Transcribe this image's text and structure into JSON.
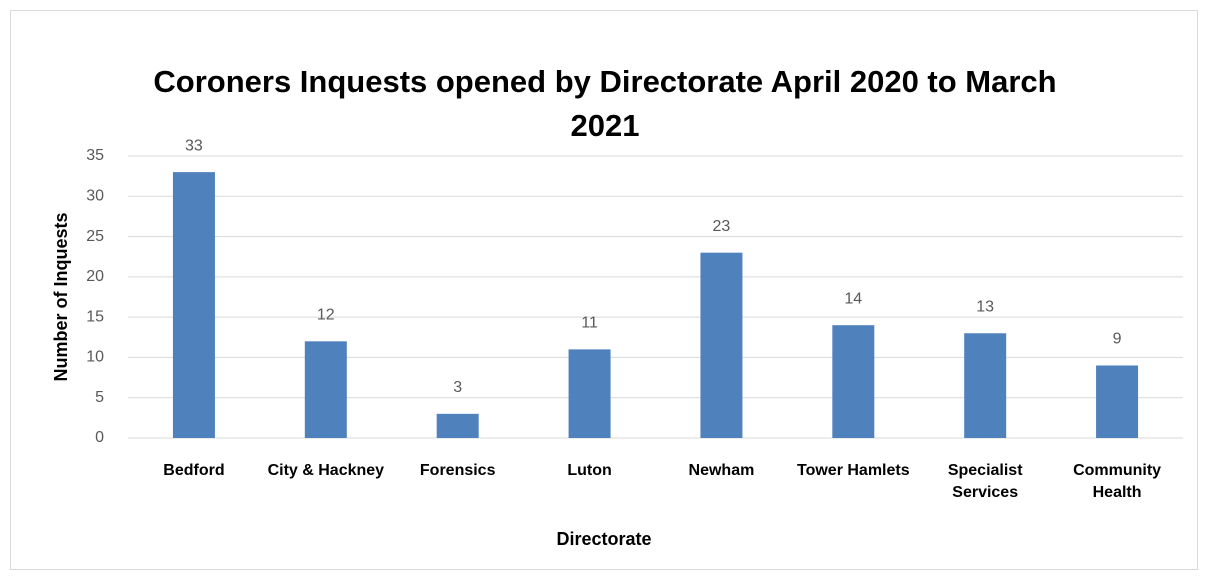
{
  "chart_data": {
    "type": "bar",
    "title": "Coroners Inquests opened by Directorate April 2020 to March 2021",
    "x_label": "Directorate",
    "y_label": "Number of Inquests",
    "categories": [
      "Bedford",
      "City & Hackney",
      "Forensics",
      "Luton",
      "Newham",
      "Tower Hamlets",
      "Specialist Services",
      "Community Health"
    ],
    "values": [
      33,
      12,
      3,
      11,
      23,
      14,
      13,
      9
    ],
    "color": "#4f81bd",
    "ylim": [
      0,
      35
    ],
    "yticks": [
      0,
      5,
      10,
      15,
      20,
      25,
      30,
      35
    ],
    "grid": true
  }
}
